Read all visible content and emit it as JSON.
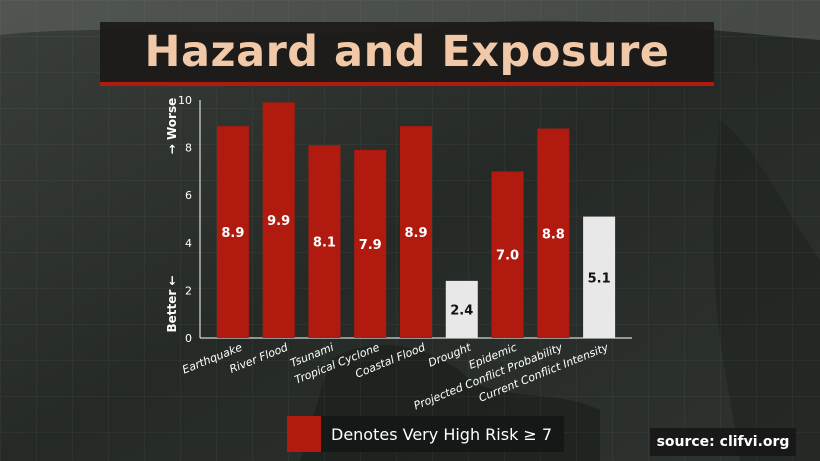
{
  "title": "Hazard and Exposure",
  "legend": {
    "label": "Denotes Very High Risk ≥ 7",
    "color": "#b11a0f"
  },
  "source": "source: clifvi.org",
  "chart_data": {
    "type": "bar",
    "categories": [
      "Earthquake",
      "River Flood",
      "Tsunami",
      "Tropical Cyclone",
      "Coastal Flood",
      "Drought",
      "Epidemic",
      "Projected Conflict Probability",
      "Current Conflict Intensity"
    ],
    "values": [
      8.9,
      9.9,
      8.1,
      7.9,
      8.9,
      2.4,
      7.0,
      8.8,
      5.1
    ],
    "value_labels": [
      "8.9",
      "9.9",
      "8.1",
      "7.9",
      "8.9",
      "2.4",
      "7.0",
      "8.8",
      "5.1"
    ],
    "ylim": [
      0,
      10
    ],
    "yticks": [
      0,
      2,
      4,
      6,
      8,
      10
    ],
    "ylabel_top": "Worse",
    "ylabel_bottom": "Better",
    "threshold": 7,
    "colors": {
      "high": "#b11a0f",
      "low": "#e8e8e8"
    },
    "grid": false,
    "legend_position": "bottom"
  }
}
